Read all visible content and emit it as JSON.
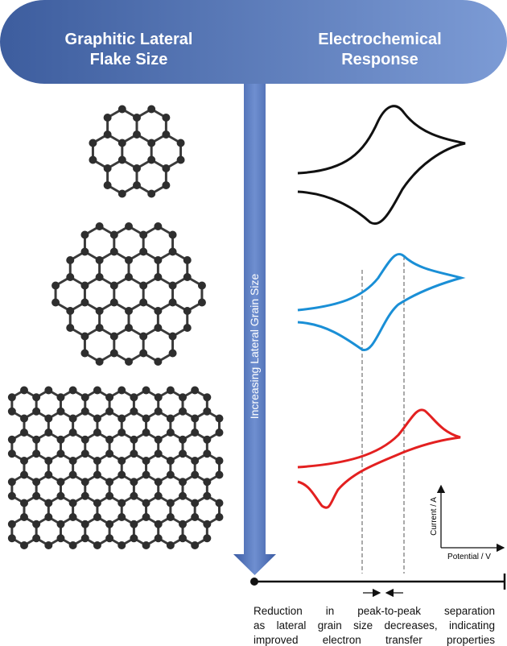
{
  "header": {
    "left_title": [
      "Graphitic Lateral",
      "Flake Size"
    ],
    "right_title": [
      "Electrochemical",
      "Response"
    ]
  },
  "arrow_label": "Increasing Lateral Grain Size",
  "inset_axes": {
    "y_label": "Current / A",
    "x_label": "Potential / V"
  },
  "caption": [
    "Reduction in peak-to-peak separation",
    "as lateral grain size decreases, indicating",
    "improved electron transfer properties"
  ]
}
